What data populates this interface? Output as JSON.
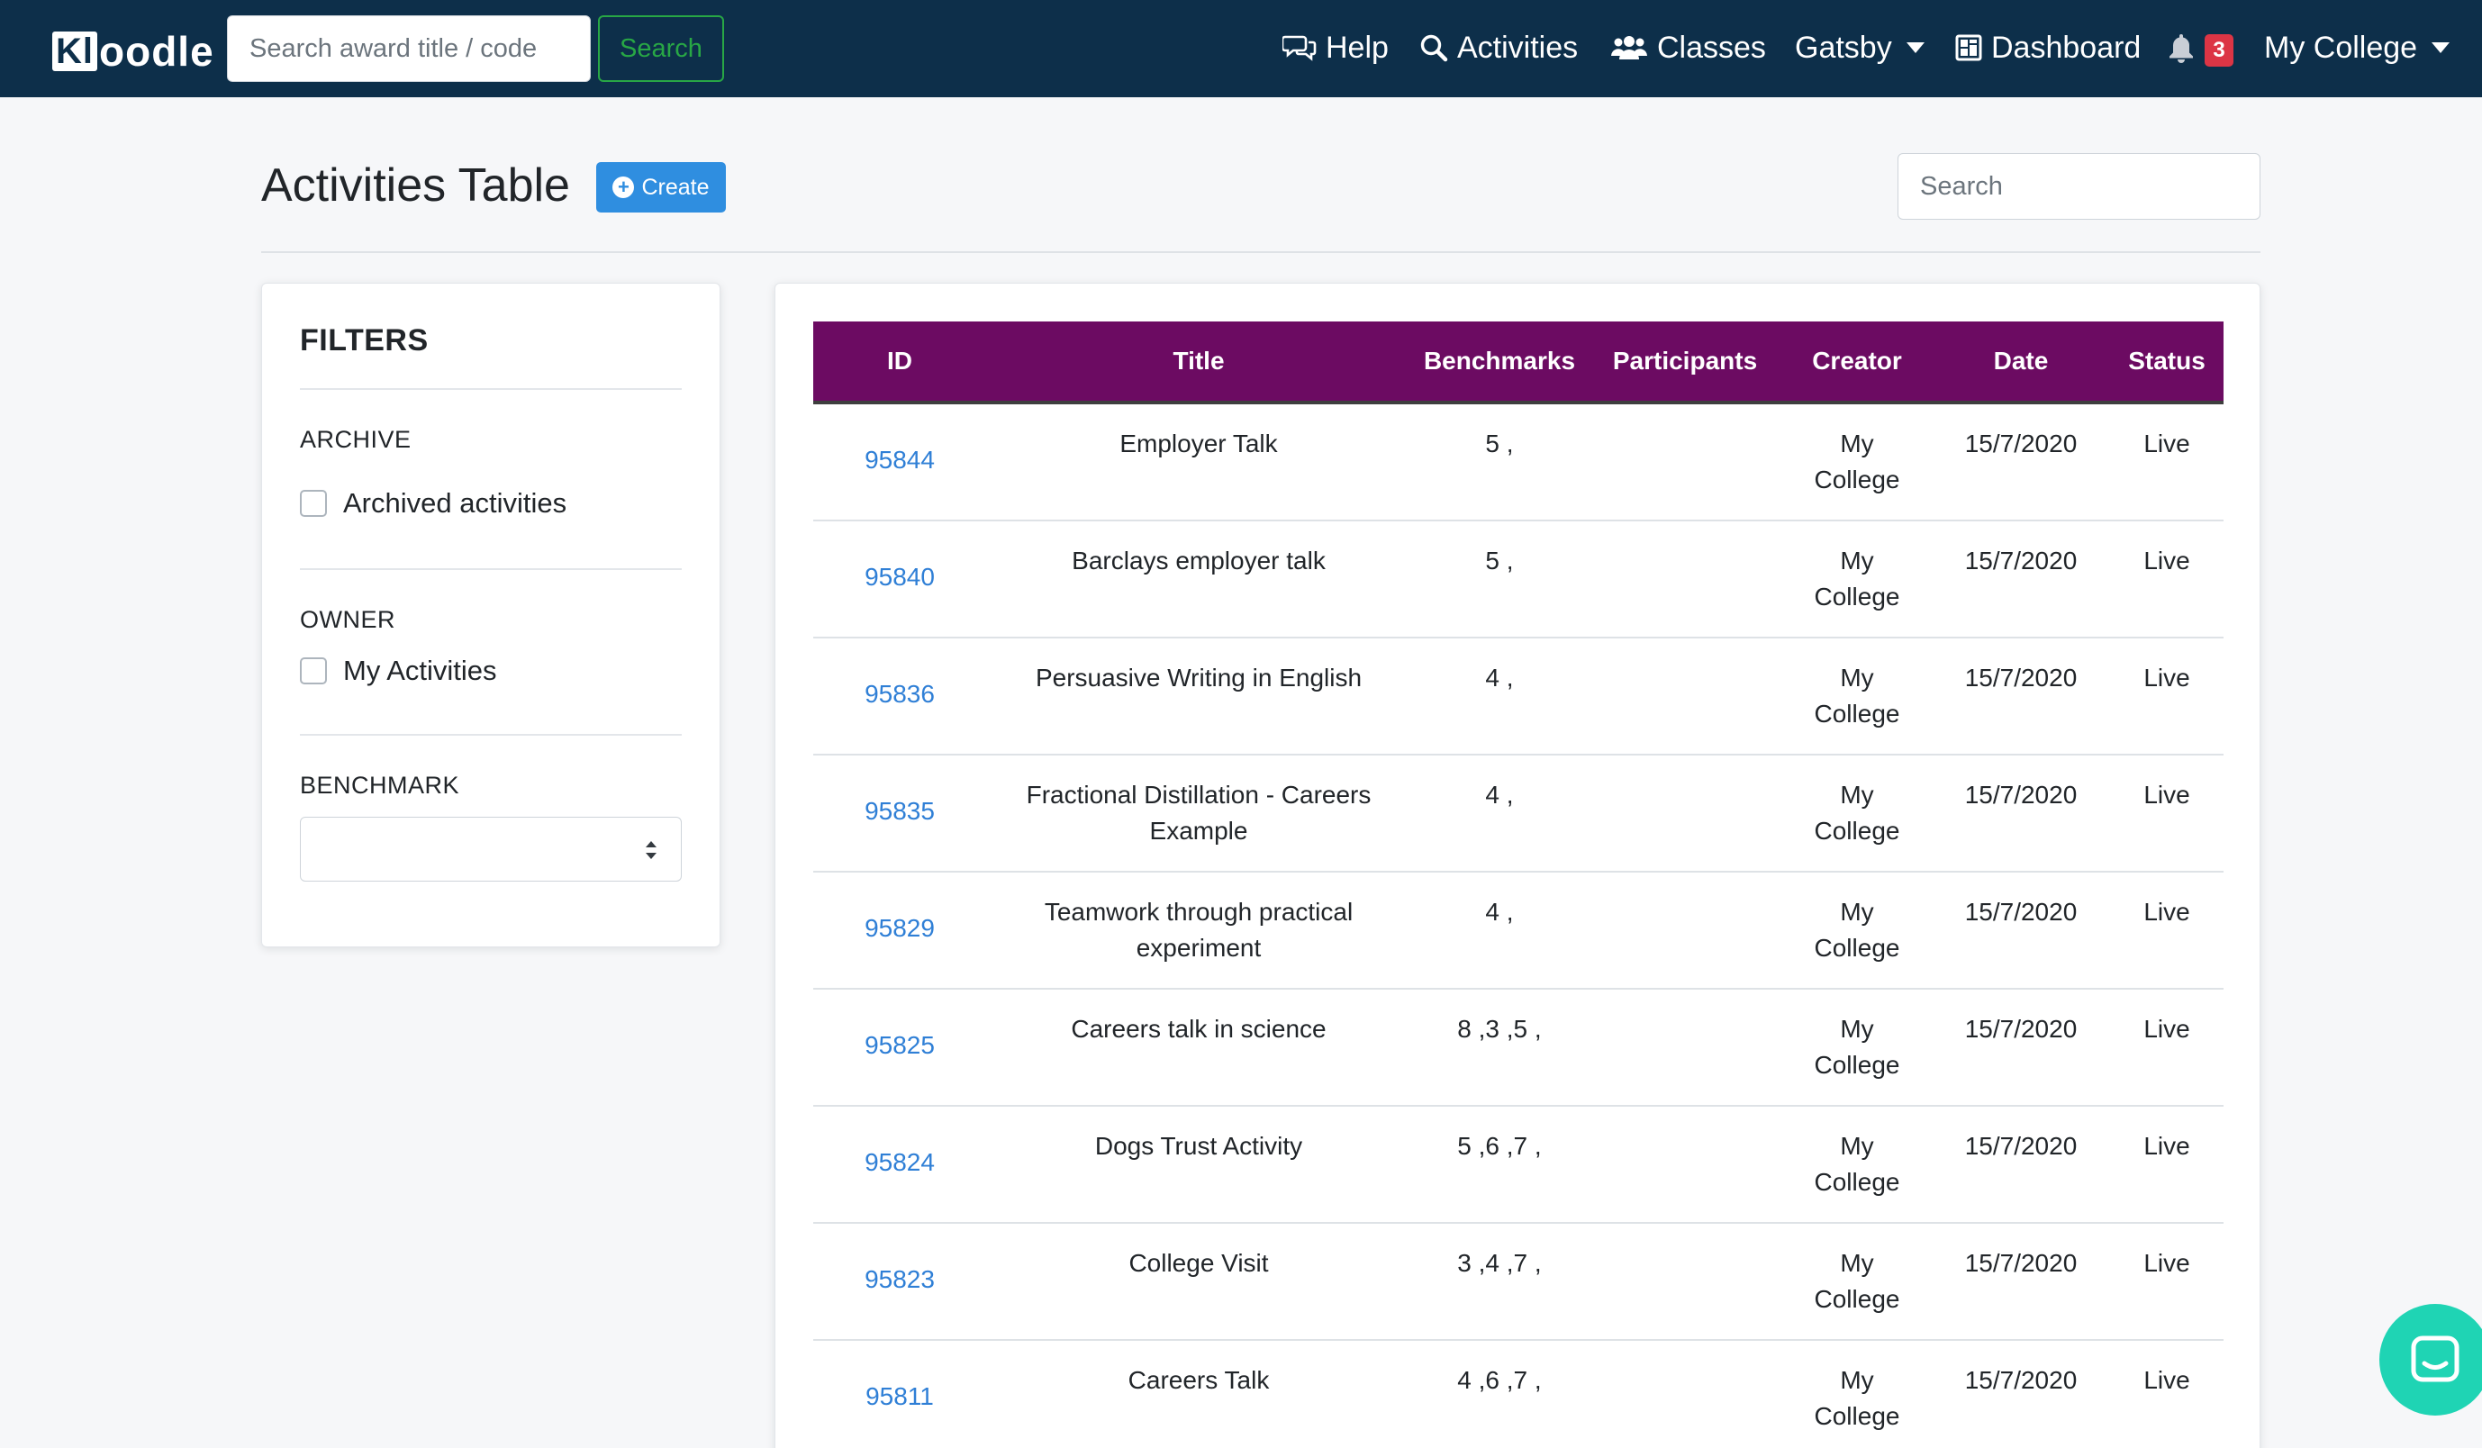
{
  "nav": {
    "brand_box": "Kl",
    "brand_rest": "oodle",
    "search_placeholder": "Search award title / code",
    "search_button": "Search",
    "help": "Help",
    "activities": "Activities",
    "classes": "Classes",
    "gatsby": "Gatsby",
    "dashboard": "Dashboard",
    "notifications_count": "3",
    "account": "My College"
  },
  "header": {
    "title": "Activities Table",
    "create_button": "Create",
    "search_placeholder": "Search"
  },
  "filters": {
    "title": "FILTERS",
    "archive_heading": "ARCHIVE",
    "archive_option": "Archived activities",
    "owner_heading": "OWNER",
    "owner_option": "My Activities",
    "benchmark_heading": "BENCHMARK",
    "benchmark_selected": ""
  },
  "table": {
    "columns": [
      "ID",
      "Title",
      "Benchmarks",
      "Participants",
      "Creator",
      "Date",
      "Status"
    ],
    "rows": [
      {
        "id": "95844",
        "title": "Employer Talk",
        "benchmarks": "5 ,",
        "participants": "",
        "creator": "My College",
        "date": "15/7/2020",
        "status": "Live"
      },
      {
        "id": "95840",
        "title": "Barclays employer talk",
        "benchmarks": "5 ,",
        "participants": "",
        "creator": "My College",
        "date": "15/7/2020",
        "status": "Live"
      },
      {
        "id": "95836",
        "title": "Persuasive Writing in English",
        "benchmarks": "4 ,",
        "participants": "",
        "creator": "My College",
        "date": "15/7/2020",
        "status": "Live"
      },
      {
        "id": "95835",
        "title": "Fractional Distillation - Careers Example",
        "benchmarks": "4 ,",
        "participants": "",
        "creator": "My College",
        "date": "15/7/2020",
        "status": "Live"
      },
      {
        "id": "95829",
        "title": "Teamwork through practical experiment",
        "benchmarks": "4 ,",
        "participants": "",
        "creator": "My College",
        "date": "15/7/2020",
        "status": "Live"
      },
      {
        "id": "95825",
        "title": "Careers talk in science",
        "benchmarks": "8 ,3 ,5 ,",
        "participants": "",
        "creator": "My College",
        "date": "15/7/2020",
        "status": "Live"
      },
      {
        "id": "95824",
        "title": "Dogs Trust Activity",
        "benchmarks": "5 ,6 ,7 ,",
        "participants": "",
        "creator": "My College",
        "date": "15/7/2020",
        "status": "Live"
      },
      {
        "id": "95823",
        "title": "College Visit",
        "benchmarks": "3 ,4 ,7 ,",
        "participants": "",
        "creator": "My College",
        "date": "15/7/2020",
        "status": "Live"
      },
      {
        "id": "95811",
        "title": "Careers Talk",
        "benchmarks": "4 ,6 ,7 ,",
        "participants": "",
        "creator": "My College",
        "date": "15/7/2020",
        "status": "Live"
      }
    ]
  },
  "icons": {
    "help": "chat-bubbles-icon",
    "activities": "search-icon",
    "classes": "users-icon",
    "dashboard": "dashboard-icon",
    "notifications": "bell-icon",
    "chat": "chat-widget-icon"
  },
  "colors": {
    "navbar": "#0d2f4a",
    "table_header": "#6c0b62",
    "link": "#2f7fd6",
    "primary": "#2f8ee0",
    "success": "#28a745",
    "badge": "#dc3545",
    "chat": "#1fd4b4"
  }
}
